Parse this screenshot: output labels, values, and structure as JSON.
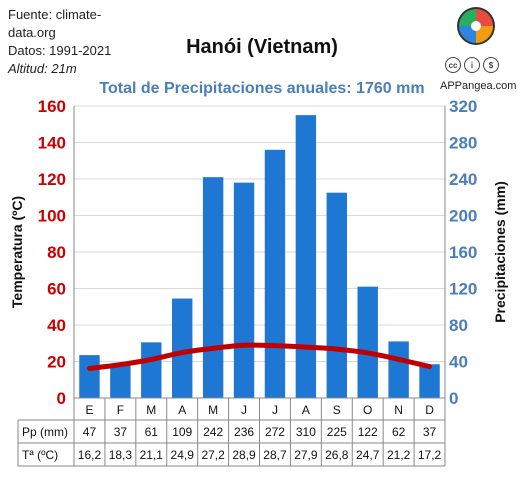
{
  "source": {
    "line1": "Fuente: climate-",
    "line2": "data.org",
    "line3": "Datos: 1991-2021",
    "line4": "Altitud: 21m"
  },
  "brand": "APPangea.com",
  "chart_data": {
    "type": "bar",
    "title": "Hanói (Vietnam)",
    "subtitle": "Total de Precipitaciones anuales: 1760 mm",
    "categories": [
      "E",
      "F",
      "M",
      "A",
      "M",
      "J",
      "J",
      "A",
      "S",
      "O",
      "N",
      "D"
    ],
    "series": [
      {
        "name": "Pp (mm)",
        "type": "bar",
        "axis": "right",
        "values": [
          47,
          37,
          61,
          109,
          242,
          236,
          272,
          310,
          225,
          122,
          62,
          37
        ],
        "color": "#1f77d4"
      },
      {
        "name": "Tª (ºC)",
        "type": "line",
        "axis": "left",
        "values": [
          16.2,
          18.3,
          21.1,
          24.9,
          27.2,
          28.9,
          28.7,
          27.9,
          26.8,
          24.7,
          21.2,
          17.2
        ],
        "color": "#c00000"
      }
    ],
    "table": {
      "pp_label": "Pp (mm)",
      "pp_values": [
        "47",
        "37",
        "61",
        "109",
        "242",
        "236",
        "272",
        "310",
        "225",
        "122",
        "62",
        "37"
      ],
      "t_label": "Tª (ºC)",
      "t_values": [
        "16,2",
        "18,3",
        "21,1",
        "24,9",
        "27,2",
        "28,9",
        "28,7",
        "27,9",
        "26,8",
        "24,7",
        "21,2",
        "17,2"
      ]
    },
    "ylabel_left": "Temperatura (ºC)",
    "ylabel_right": "Precipitaciones (mm)",
    "ylim_left": [
      0,
      160
    ],
    "ylim_right": [
      0,
      320
    ],
    "yticks_left": [
      "0",
      "20",
      "40",
      "60",
      "80",
      "100",
      "120",
      "140",
      "160"
    ],
    "yticks_right": [
      "0",
      "40",
      "80",
      "120",
      "160",
      "200",
      "240",
      "280",
      "320"
    ],
    "left_axis_color": "#cc0000",
    "right_axis_color": "#4a7ebb",
    "grid": true
  }
}
